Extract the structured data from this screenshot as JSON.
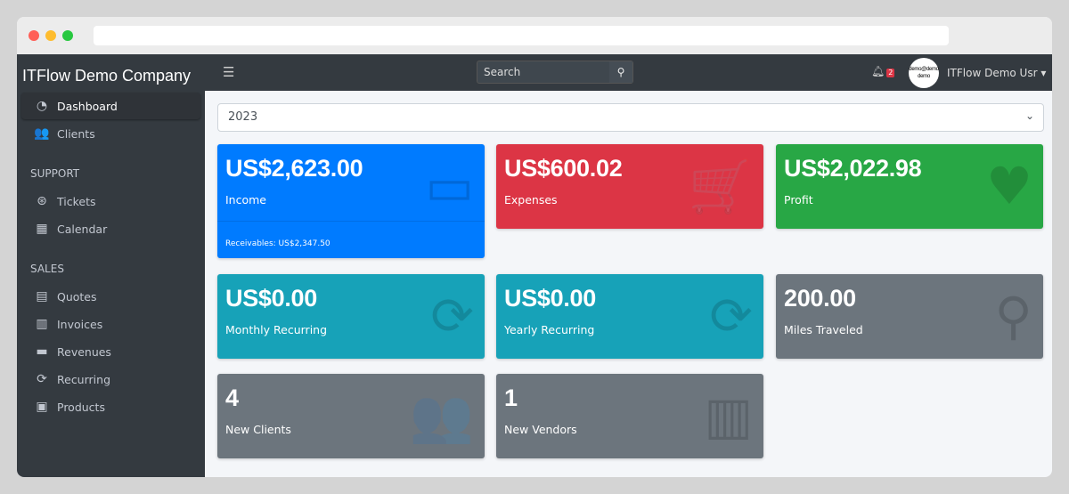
{
  "company": "ITFlow Demo Company",
  "sidebar": {
    "items": [
      {
        "label": "Dashboard",
        "icon": "tachometer-icon",
        "glyph": "◔"
      },
      {
        "label": "Clients",
        "icon": "users-icon",
        "glyph": "👥"
      }
    ],
    "support_heading": "SUPPORT",
    "support": [
      {
        "label": "Tickets",
        "icon": "life-ring-icon",
        "glyph": "⊛"
      },
      {
        "label": "Calendar",
        "icon": "calendar-icon",
        "glyph": "▦"
      }
    ],
    "sales_heading": "SALES",
    "sales": [
      {
        "label": "Quotes",
        "icon": "file-icon",
        "glyph": "▤"
      },
      {
        "label": "Invoices",
        "icon": "invoice-icon",
        "glyph": "▥"
      },
      {
        "label": "Revenues",
        "icon": "credit-card-icon",
        "glyph": "▬"
      },
      {
        "label": "Recurring",
        "icon": "sync-icon",
        "glyph": "⟳"
      },
      {
        "label": "Products",
        "icon": "box-icon",
        "glyph": "▣"
      }
    ]
  },
  "topnav": {
    "search_placeholder": "Search",
    "notifications": "2",
    "avatar_text": "demo@demo demo",
    "user": "ITFlow Demo Usr"
  },
  "year": "2023",
  "cards": [
    {
      "value": "US$2,623.00",
      "label": "Income",
      "footer": "Receivables: US$2,347.50",
      "color": "#007bff",
      "icon": "credit-card-icon",
      "glyph": "▭"
    },
    {
      "value": "US$600.02",
      "label": "Expenses",
      "color": "#dc3545",
      "icon": "shopping-cart-icon",
      "glyph": "🛒"
    },
    {
      "value": "US$2,022.98",
      "label": "Profit",
      "color": "#28a745",
      "icon": "heart-icon",
      "glyph": "♥"
    },
    {
      "value": "US$0.00",
      "label": "Monthly Recurring",
      "color": "#17a2b8",
      "icon": "sync-icon",
      "glyph": "⟳"
    },
    {
      "value": "US$0.00",
      "label": "Yearly Recurring",
      "color": "#17a2b8",
      "icon": "sync-icon",
      "glyph": "⟳"
    },
    {
      "value": "200.00",
      "label": "Miles Traveled",
      "color": "#6c757d",
      "icon": "route-icon",
      "glyph": "⚲"
    },
    {
      "value": "4",
      "label": "New Clients",
      "color": "#6c757d",
      "icon": "users-icon",
      "glyph": "👥"
    },
    {
      "value": "1",
      "label": "New Vendors",
      "color": "#6c757d",
      "icon": "building-icon",
      "glyph": "▥"
    }
  ]
}
